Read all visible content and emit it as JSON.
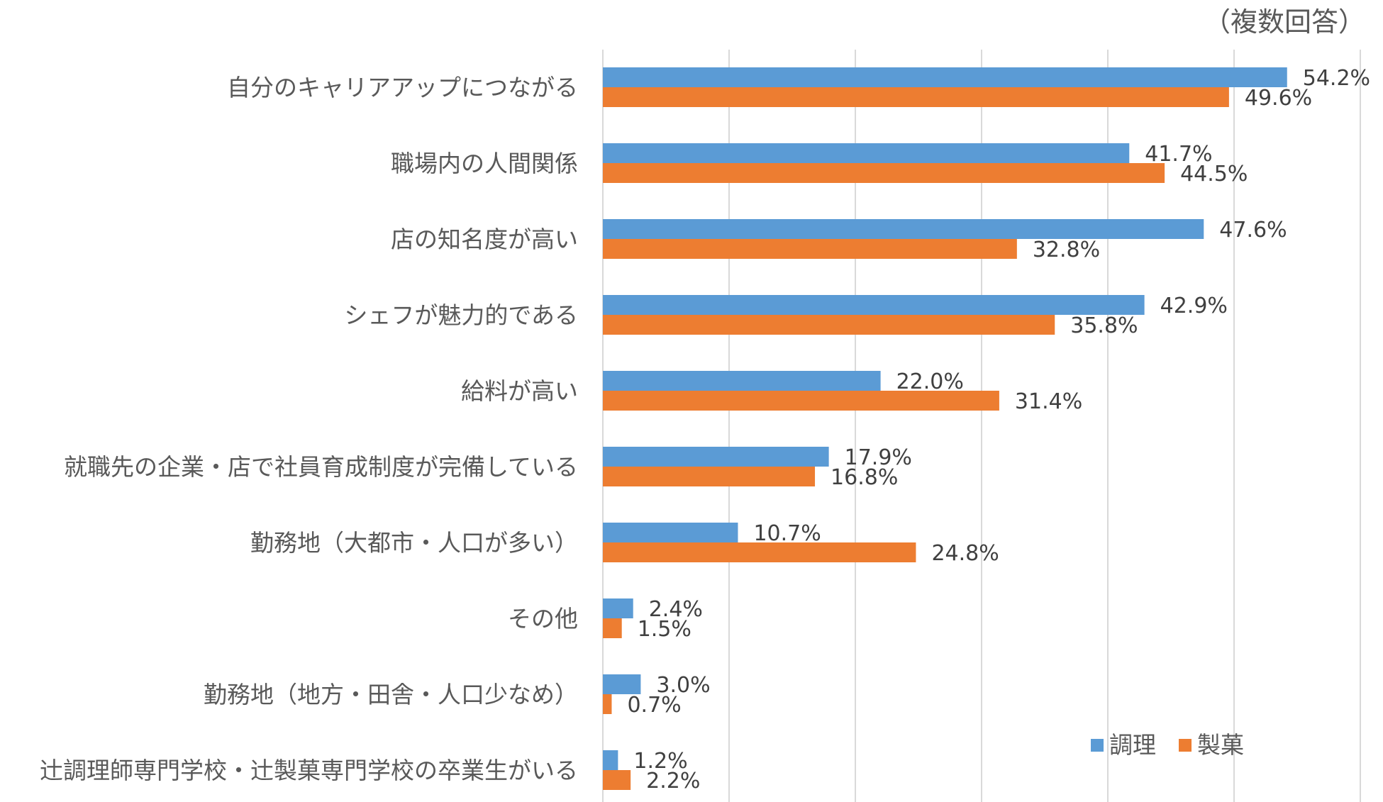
{
  "note": "（複数回答）",
  "colors": {
    "調理": "#5b9bd5",
    "製菓": "#ed7d31"
  },
  "chart_data": {
    "type": "bar",
    "orientation": "horizontal",
    "title": "",
    "xlabel": "",
    "ylabel": "",
    "xlim": [
      0,
      60
    ],
    "grid": true,
    "legend_position": "bottom-right",
    "categories": [
      "自分のキャリアアップにつながる",
      "職場内の人間関係",
      "店の知名度が高い",
      "シェフが魅力的である",
      "給料が高い",
      "就職先の企業・店で社員育成制度が完備している",
      "勤務地（大都市・人口が多い）",
      "その他",
      "勤務地（地方・田舎・人口少なめ）",
      "辻調理師専門学校・辻製菓専門学校の卒業生がいる"
    ],
    "series": [
      {
        "name": "調理",
        "values": [
          54.2,
          41.7,
          47.6,
          42.9,
          22.0,
          17.9,
          10.7,
          2.4,
          3.0,
          1.2
        ],
        "labels": [
          "54.2%",
          "41.7%",
          "47.6%",
          "42.9%",
          "22.0%",
          "17.9%",
          "10.7%",
          "2.4%",
          "3.0%",
          "1.2%"
        ]
      },
      {
        "name": "製菓",
        "values": [
          49.6,
          44.5,
          32.8,
          35.8,
          31.4,
          16.8,
          24.8,
          1.5,
          0.7,
          2.2
        ],
        "labels": [
          "49.6%",
          "44.5%",
          "32.8%",
          "35.8%",
          "31.4%",
          "16.8%",
          "24.8%",
          "1.5%",
          "0.7%",
          "2.2%"
        ]
      }
    ]
  }
}
